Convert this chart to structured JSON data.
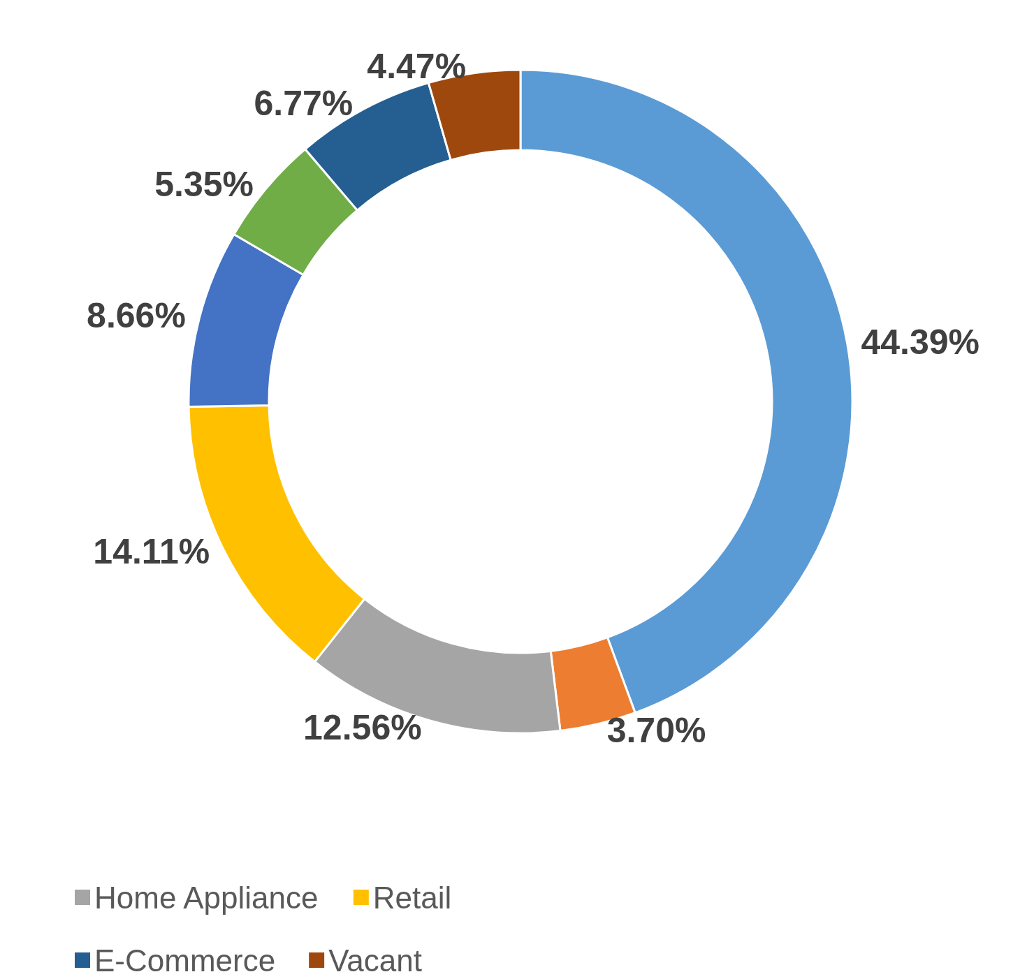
{
  "chart_data": {
    "type": "donut",
    "categories": [
      null,
      null,
      "Home Appliance",
      "Retail",
      null,
      null,
      "E-Commerce",
      "Vacant"
    ],
    "values": [
      44.39,
      3.7,
      12.56,
      14.11,
      8.66,
      5.35,
      6.77,
      4.47
    ],
    "colors": [
      "#5b9bd5",
      "#ed7d31",
      "#a5a5a5",
      "#ffc000",
      "#4472c4",
      "#70ad47",
      "#255e91",
      "#9e480e"
    ],
    "value_labels": [
      "44.39%",
      "3.70%",
      "12.56%",
      "14.11%",
      "8.66%",
      "5.35%",
      "6.77%",
      "4.47%"
    ],
    "legend": "bottom"
  }
}
